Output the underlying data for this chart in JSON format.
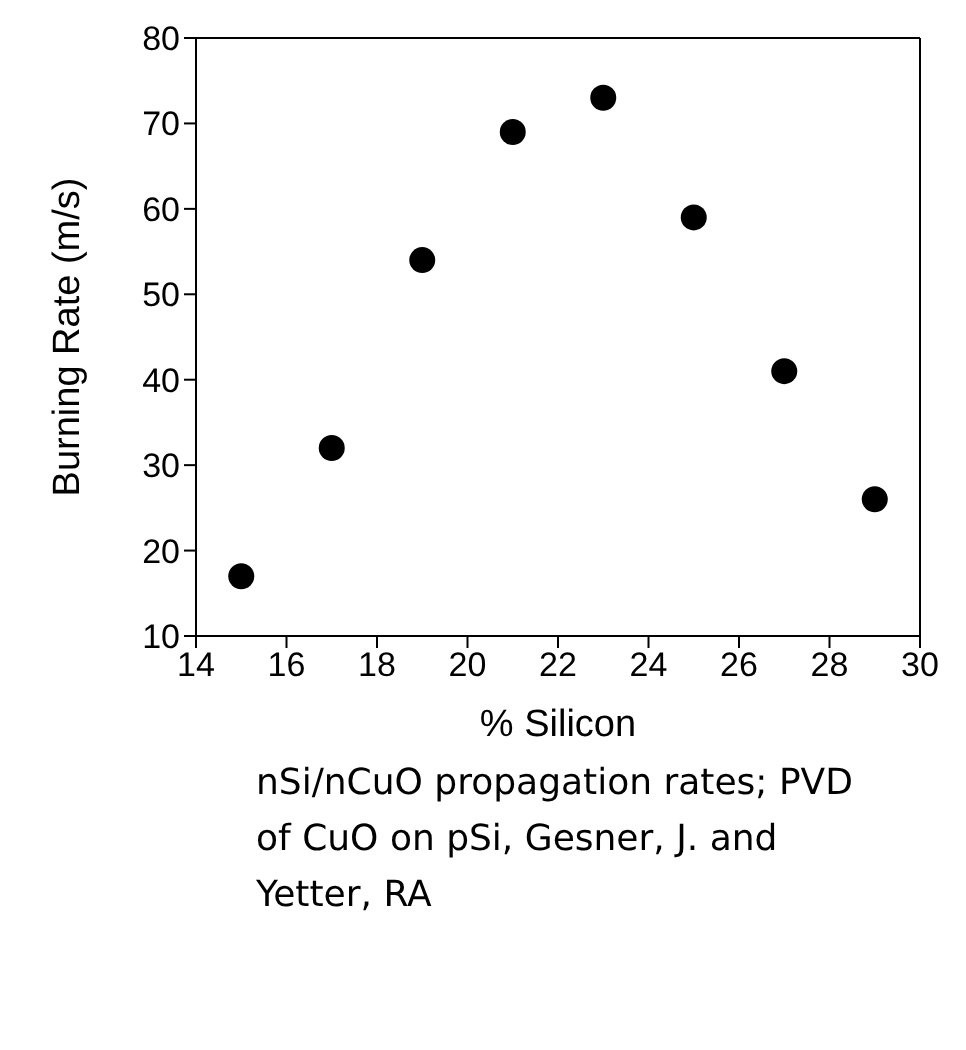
{
  "chart_data": {
    "type": "scatter",
    "xlabel": "% Silicon",
    "ylabel": "Burning Rate (m/s)",
    "x": [
      15,
      17,
      19,
      21,
      23,
      25,
      27,
      29
    ],
    "values": [
      17,
      32,
      54,
      69,
      73,
      59,
      41,
      26
    ],
    "color": "#000000",
    "marker": "circle",
    "xlim": [
      14,
      30
    ],
    "xticks": [
      14,
      16,
      18,
      20,
      22,
      24,
      26,
      28,
      30
    ],
    "ylim": [
      10,
      80
    ],
    "yticks": [
      10,
      20,
      30,
      40,
      50,
      60,
      70,
      80
    ],
    "annotations": [
      "nSi/nCuO propagation rates; PVD of CuO on pSi,  Gesner, J. and Yetter, RA"
    ]
  }
}
